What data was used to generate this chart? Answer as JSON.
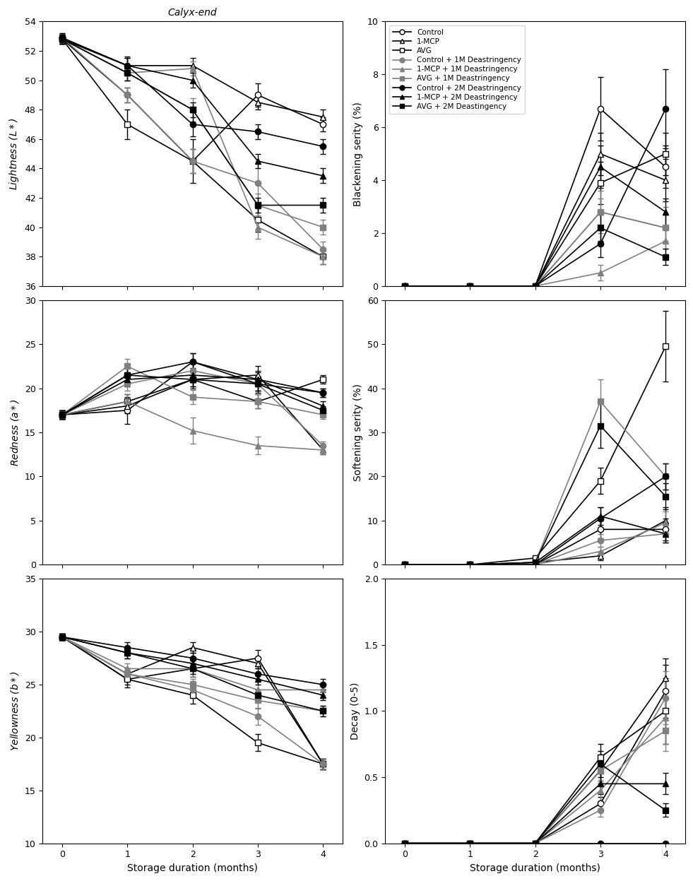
{
  "x": [
    0,
    1,
    2,
    3,
    4
  ],
  "series": {
    "Control": {
      "color": "black",
      "marker": "o",
      "fillstyle": "none",
      "mfc": "white"
    },
    "1-MCP": {
      "color": "black",
      "marker": "^",
      "fillstyle": "none",
      "mfc": "white"
    },
    "AVG": {
      "color": "black",
      "marker": "s",
      "fillstyle": "none",
      "mfc": "white"
    },
    "Control + 1M Deastringency": {
      "color": "gray",
      "marker": "o",
      "fillstyle": "full",
      "mfc": "gray"
    },
    "1-MCP + 1M Deastringency": {
      "color": "gray",
      "marker": "^",
      "fillstyle": "full",
      "mfc": "gray"
    },
    "AVG + 1M Deastringency": {
      "color": "gray",
      "marker": "s",
      "fillstyle": "full",
      "mfc": "gray"
    },
    "Control + 2M Deastringency": {
      "color": "black",
      "marker": "o",
      "fillstyle": "full",
      "mfc": "black"
    },
    "1-MCP + 2M Deastringency": {
      "color": "black",
      "marker": "^",
      "fillstyle": "full",
      "mfc": "black"
    },
    "AVG + 2M Deastingency": {
      "color": "black",
      "marker": "s",
      "fillstyle": "full",
      "mfc": "black"
    }
  },
  "lightness": {
    "y": [
      [
        52.8,
        49.0,
        44.5,
        49.0,
        47.0
      ],
      [
        52.8,
        51.0,
        51.0,
        48.5,
        47.5
      ],
      [
        52.8,
        47.0,
        44.5,
        40.5,
        38.0
      ],
      [
        52.9,
        49.0,
        44.5,
        43.0,
        38.5
      ],
      [
        52.8,
        50.5,
        50.8,
        40.0,
        38.0
      ],
      [
        52.8,
        50.5,
        48.0,
        41.5,
        40.0
      ],
      [
        52.9,
        51.0,
        47.0,
        46.5,
        45.5
      ],
      [
        52.8,
        51.0,
        50.0,
        44.5,
        43.5
      ],
      [
        52.8,
        50.5,
        48.0,
        41.5,
        41.5
      ]
    ],
    "yerr": [
      [
        0.3,
        0.5,
        1.5,
        0.8,
        0.5
      ],
      [
        0.3,
        0.6,
        0.5,
        0.5,
        0.5
      ],
      [
        0.3,
        1.0,
        0.8,
        0.8,
        0.5
      ],
      [
        0.3,
        0.5,
        0.8,
        1.5,
        0.5
      ],
      [
        0.3,
        0.5,
        0.5,
        0.8,
        0.5
      ],
      [
        0.3,
        0.5,
        0.8,
        0.8,
        0.5
      ],
      [
        0.3,
        0.5,
        0.8,
        0.5,
        0.5
      ],
      [
        0.3,
        0.5,
        0.5,
        0.5,
        0.5
      ],
      [
        0.3,
        0.5,
        0.5,
        0.5,
        0.5
      ]
    ],
    "ylim": [
      36,
      54
    ],
    "yticks": [
      36,
      38,
      40,
      42,
      44,
      46,
      48,
      50,
      52,
      54
    ],
    "ylabel": "Lightness ($L*$)"
  },
  "redness": {
    "y": [
      [
        17.0,
        17.5,
        23.0,
        21.0,
        19.5
      ],
      [
        17.0,
        18.0,
        21.0,
        21.5,
        13.0
      ],
      [
        17.0,
        18.5,
        21.0,
        18.5,
        21.0
      ],
      [
        17.0,
        20.5,
        22.0,
        20.5,
        13.5
      ],
      [
        17.0,
        18.5,
        15.2,
        13.5,
        13.0
      ],
      [
        17.0,
        22.5,
        19.0,
        18.5,
        17.0
      ],
      [
        17.0,
        21.5,
        23.0,
        20.5,
        19.5
      ],
      [
        17.0,
        21.0,
        21.5,
        21.0,
        18.0
      ],
      [
        17.0,
        21.5,
        21.0,
        20.5,
        17.5
      ]
    ],
    "yerr": [
      [
        0.5,
        1.5,
        1.0,
        1.5,
        0.5
      ],
      [
        0.5,
        0.8,
        1.0,
        0.5,
        0.5
      ],
      [
        0.5,
        0.8,
        0.8,
        0.8,
        0.5
      ],
      [
        0.5,
        0.8,
        0.8,
        0.8,
        0.5
      ],
      [
        0.5,
        0.8,
        1.5,
        1.0,
        0.5
      ],
      [
        0.5,
        0.8,
        0.8,
        0.8,
        0.5
      ],
      [
        0.5,
        0.8,
        1.0,
        0.8,
        0.5
      ],
      [
        0.5,
        0.8,
        0.8,
        0.8,
        0.5
      ],
      [
        0.5,
        0.8,
        0.8,
        0.8,
        0.5
      ]
    ],
    "ylim": [
      0,
      30
    ],
    "yticks": [
      0,
      5,
      10,
      15,
      20,
      25,
      30
    ],
    "ylabel": "Redness ($a*$)"
  },
  "yellowness": {
    "y": [
      [
        29.5,
        25.5,
        26.5,
        27.5,
        17.5
      ],
      [
        29.5,
        26.0,
        28.5,
        27.0,
        17.5
      ],
      [
        29.5,
        25.5,
        24.0,
        19.5,
        17.5
      ],
      [
        29.5,
        26.0,
        24.5,
        22.0,
        17.5
      ],
      [
        29.5,
        26.5,
        26.5,
        24.5,
        24.5
      ],
      [
        29.5,
        26.0,
        25.0,
        23.5,
        22.5
      ],
      [
        29.5,
        28.5,
        27.5,
        26.0,
        25.0
      ],
      [
        29.5,
        28.0,
        27.0,
        25.5,
        24.0
      ],
      [
        29.5,
        28.0,
        26.5,
        24.0,
        22.5
      ]
    ],
    "yerr": [
      [
        0.3,
        0.5,
        0.8,
        0.8,
        0.5
      ],
      [
        0.3,
        0.5,
        0.5,
        0.5,
        0.5
      ],
      [
        0.3,
        0.8,
        0.8,
        0.8,
        0.5
      ],
      [
        0.3,
        0.5,
        0.8,
        0.8,
        0.5
      ],
      [
        0.3,
        0.5,
        0.8,
        0.8,
        0.5
      ],
      [
        0.3,
        0.5,
        0.5,
        0.8,
        0.5
      ],
      [
        0.3,
        0.5,
        0.5,
        0.5,
        0.5
      ],
      [
        0.3,
        0.5,
        0.5,
        0.5,
        0.5
      ],
      [
        0.3,
        0.5,
        0.5,
        0.5,
        0.5
      ]
    ],
    "ylim": [
      10,
      35
    ],
    "yticks": [
      10,
      15,
      20,
      25,
      30,
      35
    ],
    "ylabel": "Yellowness ($b*$)"
  },
  "blackening": {
    "y": [
      [
        0.0,
        0.0,
        0.0,
        6.7,
        4.5
      ],
      [
        0.0,
        0.0,
        0.0,
        5.0,
        4.0
      ],
      [
        0.0,
        0.0,
        0.0,
        3.9,
        5.0
      ],
      [
        0.0,
        0.0,
        0.0,
        2.8,
        2.2
      ],
      [
        0.0,
        0.0,
        0.0,
        0.5,
        1.7
      ],
      [
        0.0,
        0.0,
        0.0,
        2.8,
        2.2
      ],
      [
        0.0,
        0.0,
        0.0,
        1.6,
        6.7
      ],
      [
        0.0,
        0.0,
        0.0,
        4.5,
        2.8
      ],
      [
        0.0,
        0.0,
        0.0,
        2.2,
        1.1
      ]
    ],
    "yerr": [
      [
        0.0,
        0.0,
        0.0,
        1.2,
        0.8
      ],
      [
        0.0,
        0.0,
        0.0,
        0.8,
        0.8
      ],
      [
        0.0,
        0.0,
        0.0,
        0.8,
        0.8
      ],
      [
        0.0,
        0.0,
        0.0,
        0.8,
        0.8
      ],
      [
        0.0,
        0.0,
        0.0,
        0.3,
        0.5
      ],
      [
        0.0,
        0.0,
        0.0,
        0.5,
        0.5
      ],
      [
        0.0,
        0.0,
        0.0,
        0.5,
        1.5
      ],
      [
        0.0,
        0.0,
        0.0,
        0.8,
        0.5
      ],
      [
        0.0,
        0.0,
        0.0,
        0.5,
        0.3
      ]
    ],
    "ylim": [
      0,
      10
    ],
    "yticks": [
      0,
      2,
      4,
      6,
      8,
      10
    ],
    "ylabel": "Blackening serity (%)"
  },
  "softening": {
    "y": [
      [
        0.0,
        0.0,
        0.0,
        8.0,
        8.0
      ],
      [
        0.0,
        0.0,
        0.5,
        2.0,
        10.0
      ],
      [
        0.0,
        0.0,
        1.5,
        19.0,
        49.5
      ],
      [
        0.0,
        0.0,
        0.0,
        5.5,
        7.0
      ],
      [
        0.0,
        0.0,
        0.0,
        3.0,
        9.5
      ],
      [
        0.0,
        0.0,
        0.5,
        37.0,
        20.0
      ],
      [
        0.0,
        0.0,
        0.0,
        10.5,
        20.0
      ],
      [
        0.0,
        0.0,
        0.5,
        11.0,
        7.0
      ],
      [
        0.0,
        0.0,
        0.5,
        31.5,
        15.5
      ]
    ],
    "yerr": [
      [
        0.0,
        0.0,
        0.0,
        2.0,
        2.5
      ],
      [
        0.0,
        0.0,
        0.2,
        1.0,
        3.0
      ],
      [
        0.0,
        0.0,
        0.5,
        3.0,
        8.0
      ],
      [
        0.0,
        0.0,
        0.0,
        1.5,
        2.0
      ],
      [
        0.0,
        0.0,
        0.0,
        1.0,
        2.5
      ],
      [
        0.0,
        0.0,
        0.2,
        5.0,
        3.0
      ],
      [
        0.0,
        0.0,
        0.0,
        2.5,
        3.0
      ],
      [
        0.0,
        0.0,
        0.2,
        2.0,
        2.0
      ],
      [
        0.0,
        0.0,
        0.2,
        5.0,
        3.0
      ]
    ],
    "ylim": [
      0,
      60
    ],
    "yticks": [
      0,
      10,
      20,
      30,
      40,
      50,
      60
    ],
    "ylabel": "Softening serity (%)"
  },
  "decay": {
    "y": [
      [
        0.0,
        0.0,
        0.0,
        0.3,
        1.15
      ],
      [
        0.0,
        0.0,
        0.0,
        0.55,
        1.25
      ],
      [
        0.0,
        0.0,
        0.0,
        0.65,
        1.0
      ],
      [
        0.0,
        0.0,
        0.0,
        0.25,
        1.1
      ],
      [
        0.0,
        0.0,
        0.0,
        0.4,
        0.95
      ],
      [
        0.0,
        0.0,
        0.0,
        0.55,
        0.85
      ],
      [
        0.0,
        0.0,
        0.0,
        0.0,
        0.0
      ],
      [
        0.0,
        0.0,
        0.0,
        0.45,
        0.45
      ],
      [
        0.0,
        0.0,
        0.0,
        0.6,
        0.25
      ]
    ],
    "yerr": [
      [
        0.0,
        0.0,
        0.0,
        0.05,
        0.2
      ],
      [
        0.0,
        0.0,
        0.0,
        0.1,
        0.15
      ],
      [
        0.0,
        0.0,
        0.0,
        0.1,
        0.25
      ],
      [
        0.0,
        0.0,
        0.0,
        0.05,
        0.2
      ],
      [
        0.0,
        0.0,
        0.0,
        0.08,
        0.2
      ],
      [
        0.0,
        0.0,
        0.0,
        0.08,
        0.15
      ],
      [
        0.0,
        0.0,
        0.0,
        0.0,
        0.0
      ],
      [
        0.0,
        0.0,
        0.0,
        0.08,
        0.08
      ],
      [
        0.0,
        0.0,
        0.0,
        0.1,
        0.05
      ]
    ],
    "ylim": [
      0,
      2.0
    ],
    "yticks": [
      0.0,
      0.5,
      1.0,
      1.5,
      2.0
    ],
    "ylabel": "Decay (0-5)"
  },
  "legend_labels": [
    "Control",
    "1-MCP",
    "AVG",
    "Control + 1M Deastringency",
    "1-MCP + 1M Deastringency",
    "AVG + 1M Deastringency",
    "Control + 2M Deastringency",
    "1-MCP + 2M Deastringency",
    "AVG + 2M Deastingency"
  ],
  "xlabel": "Storage duration (months)",
  "calyx_title": "Calyx-end"
}
